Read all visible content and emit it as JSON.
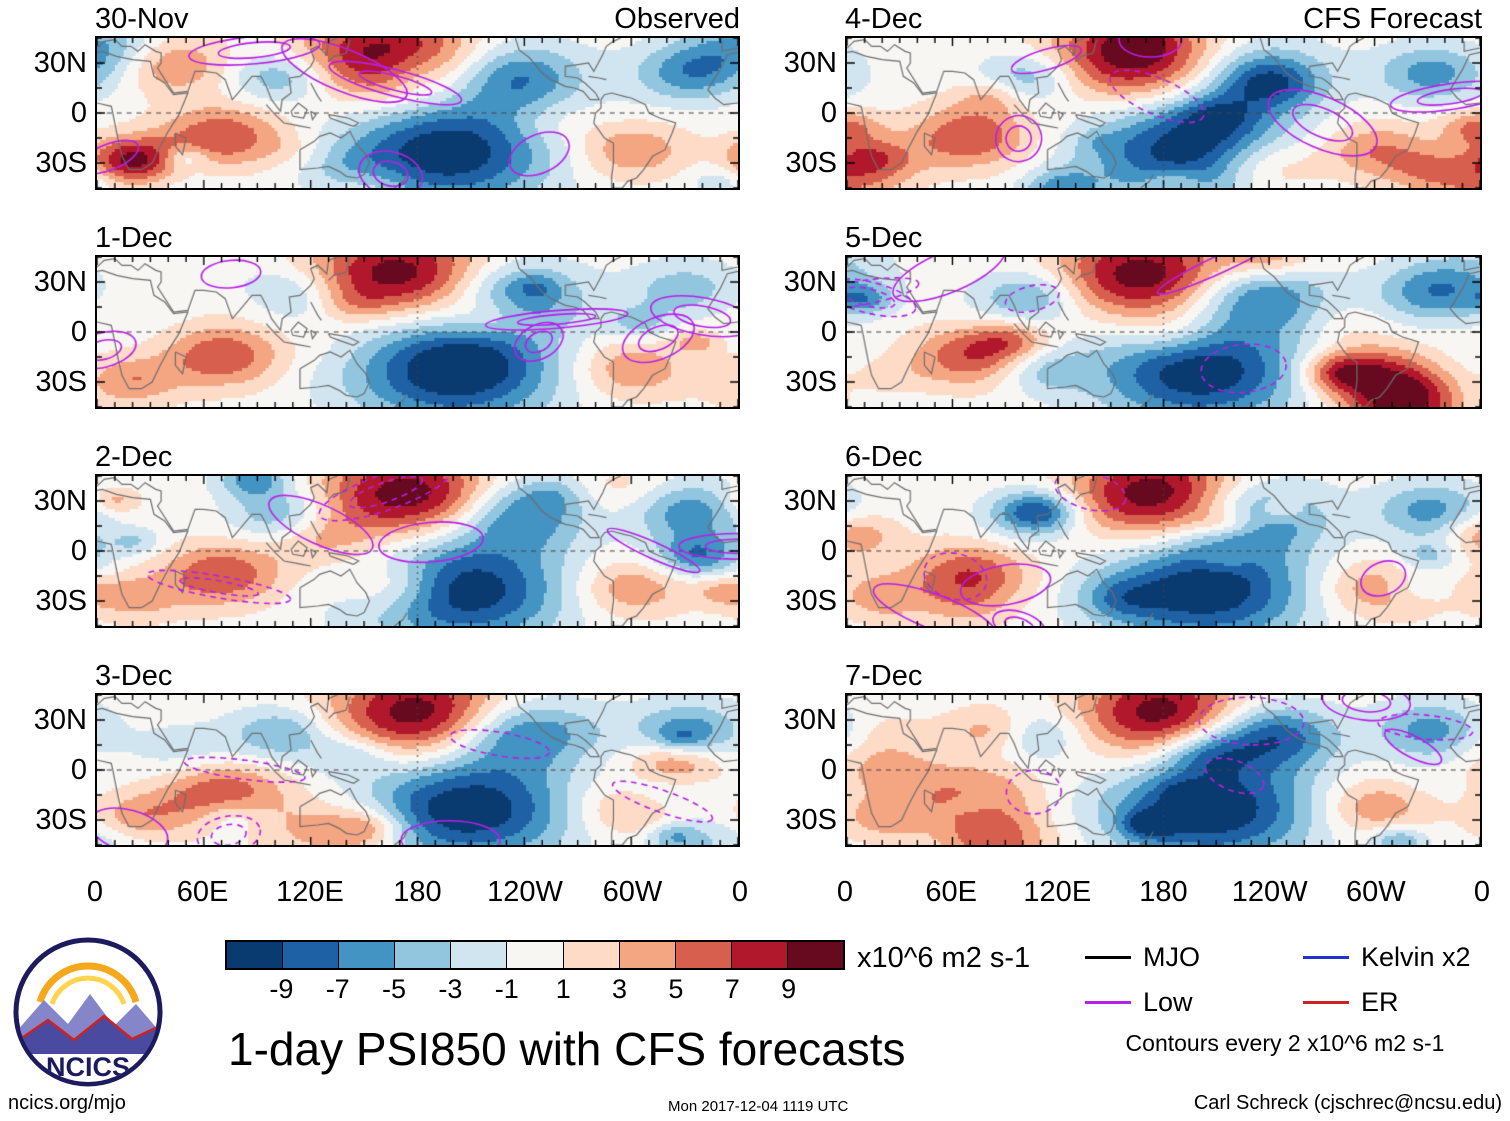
{
  "columns": [
    {
      "title": "Observed",
      "dates": [
        "30-Nov",
        "1-Dec",
        "2-Dec",
        "3-Dec"
      ]
    },
    {
      "title": "CFS Forecast",
      "dates": [
        "4-Dec",
        "5-Dec",
        "6-Dec",
        "7-Dec"
      ]
    }
  ],
  "axes": {
    "lat_ticks": [
      "30N",
      "0",
      "30S"
    ],
    "lon_ticks": [
      "0",
      "60E",
      "120E",
      "180",
      "120W",
      "60W",
      "0"
    ]
  },
  "colorbar": {
    "ticks": [
      "-9",
      "-7",
      "-5",
      "-3",
      "-1",
      "1",
      "3",
      "5",
      "7",
      "9"
    ],
    "units": "x10^6 m2 s-1"
  },
  "legend": {
    "items": [
      {
        "label": "MJO",
        "color": "#000000"
      },
      {
        "label": "Kelvin x2",
        "color": "#2233cc"
      },
      {
        "label": "Low",
        "color": "#b81fe8"
      },
      {
        "label": "ER",
        "color": "#cc2222"
      }
    ],
    "note": "Contours every 2 x10^6 m2 s-1"
  },
  "title": "1-day PSI850 with CFS forecasts",
  "logo": {
    "text": "NCICS"
  },
  "footer": {
    "left": "ncics.org/mjo",
    "center": "Mon 2017-12-04 1119 UTC",
    "right": "Carl Schreck (cjschrec@ncsu.edu)"
  },
  "chart_data": {
    "type": "heatmap",
    "title": "1-day PSI850 with CFS forecasts",
    "variable": "850-hPa streamfunction anomaly (PSI850)",
    "units": "x10^6 m2 s-1",
    "grid": {
      "rows": 4,
      "cols": 2
    },
    "panels": [
      {
        "date": "30-Nov",
        "column": "Observed"
      },
      {
        "date": "1-Dec",
        "column": "Observed"
      },
      {
        "date": "2-Dec",
        "column": "Observed"
      },
      {
        "date": "3-Dec",
        "column": "Observed"
      },
      {
        "date": "4-Dec",
        "column": "CFS Forecast"
      },
      {
        "date": "5-Dec",
        "column": "CFS Forecast"
      },
      {
        "date": "6-Dec",
        "column": "CFS Forecast"
      },
      {
        "date": "7-Dec",
        "column": "CFS Forecast"
      }
    ],
    "lon_range_deg": [
      0,
      360
    ],
    "lat_range_deg": [
      -45,
      45
    ],
    "lon_tick_labels": [
      "0",
      "60E",
      "120E",
      "180",
      "120W",
      "60W",
      "0"
    ],
    "lat_tick_labels": [
      "30N",
      "0",
      "30S"
    ],
    "fill_levels": [
      -9,
      -7,
      -5,
      -3,
      -1,
      1,
      3,
      5,
      7,
      9
    ],
    "fill_colors": [
      "#0a3b70",
      "#1e61a5",
      "#4393c3",
      "#92c5de",
      "#d1e5f0",
      "#f7f6f3",
      "#fddbc7",
      "#f4a582",
      "#d6604d",
      "#b2182b",
      "#670a1f"
    ],
    "contour_interval": 2,
    "contour_series": [
      {
        "name": "MJO",
        "color": "#000000"
      },
      {
        "name": "Low",
        "color": "#b81fe8"
      },
      {
        "name": "Kelvin x2",
        "color": "#2233cc"
      },
      {
        "name": "ER",
        "color": "#cc2222"
      }
    ]
  }
}
